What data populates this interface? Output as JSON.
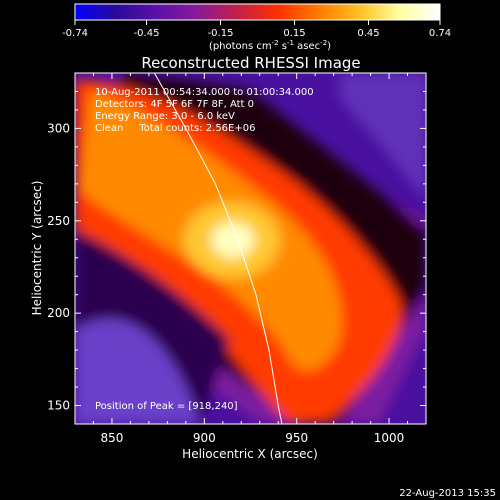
{
  "colorbar": {
    "ticks": [
      "-0.74",
      "-0.45",
      "-0.15",
      "0.15",
      "0.45",
      "0.74"
    ],
    "tick_values": [
      -0.74,
      -0.45,
      -0.15,
      0.15,
      0.45,
      0.74
    ],
    "units_pre": "(photons cm",
    "units_exp1": "-2",
    "units_mid1": " s",
    "units_exp2": "-1",
    "units_mid2": " asec",
    "units_exp3": "-2",
    "units_post": ")",
    "range": [
      -0.74,
      0.74
    ],
    "colors": [
      "#0000ff",
      "#2a0a9a",
      "#5a10a8",
      "#8a1a9a",
      "#c0204a",
      "#ff3000",
      "#ff7a00",
      "#ffc020",
      "#ffffa0",
      "#ffffff"
    ]
  },
  "chart_data": {
    "type": "heatmap",
    "title": "Reconstructed RHESSI Image",
    "xlabel": "Heliocentric X (arcsec)",
    "ylabel": "Heliocentric Y (arcsec)",
    "xlim": [
      830,
      1020
    ],
    "ylim": [
      140,
      330
    ],
    "x_ticks": [
      "850",
      "900",
      "950",
      "1000"
    ],
    "x_tick_values": [
      850,
      900,
      950,
      1000
    ],
    "y_ticks": [
      "150",
      "200",
      "250",
      "300"
    ],
    "y_tick_values": [
      150,
      200,
      250,
      300
    ],
    "annotations": [
      "10-Aug-2011 00:54:34.000 to 01:00:34.000",
      "Detectors: 4F 5F 6F 7F 8F, Att 0",
      "Energy Range: 3.0 - 6.0 keV",
      "Clean     Total counts: 2.56E+06"
    ],
    "peak_label": "Position of Peak = [918,240]",
    "peak": [
      918,
      240
    ],
    "limb_curve": [
      [
        873,
        330
      ],
      [
        890,
        300
      ],
      [
        906,
        270
      ],
      [
        918,
        240
      ],
      [
        928,
        210
      ],
      [
        935,
        180
      ],
      [
        940,
        150
      ],
      [
        942,
        140
      ]
    ],
    "timestamp": "22-Aug-2013 15:35"
  }
}
